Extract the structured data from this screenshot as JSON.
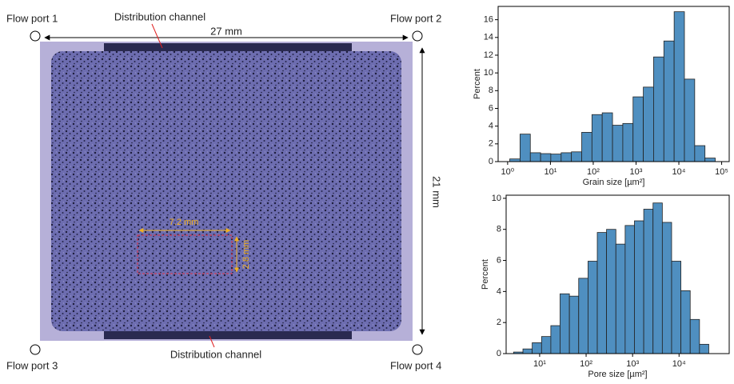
{
  "figure": {
    "port1": "Flow port 1",
    "port2": "Flow port 2",
    "port3": "Flow port 3",
    "port4": "Flow port 4",
    "channel_top": "Distribution channel",
    "channel_bottom": "Distribution channel",
    "width": "27 mm",
    "height": "21 mm",
    "roi_width": "7.2 mm",
    "roi_height": "2.8 mm"
  },
  "chart_data": [
    {
      "type": "histogram",
      "xlabel": "Grain size [µm²]",
      "ylabel": "Percent",
      "log_x": true,
      "color": "#4f8fc0",
      "bins": [
        1.12,
        1.95,
        3.39,
        5.89,
        10.2,
        17.8,
        30.9,
        53.7,
        93.3,
        162,
        282,
        490,
        851,
        1479,
        2570,
        4467,
        7762,
        13490,
        23440,
        40740,
        70790
      ],
      "values": [
        0.3,
        3.1,
        1.0,
        0.9,
        0.85,
        1.0,
        1.1,
        3.3,
        5.3,
        5.5,
        4.1,
        4.3,
        7.3,
        8.4,
        11.8,
        13.6,
        16.9,
        9.3,
        1.8,
        0.4
      ],
      "xlim": [
        0.6,
        150000
      ],
      "ylim": [
        0,
        17.5
      ],
      "xticks": [
        {
          "value": 1,
          "label": "10⁰"
        },
        {
          "value": 10,
          "label": "10¹"
        },
        {
          "value": 100,
          "label": "10²"
        },
        {
          "value": 1000,
          "label": "10³"
        },
        {
          "value": 10000,
          "label": "10⁴"
        },
        {
          "value": 100000,
          "label": "10⁵"
        }
      ],
      "yticks": [
        0,
        2,
        4,
        6,
        8,
        10,
        12,
        14,
        16
      ]
    },
    {
      "type": "histogram",
      "xlabel": "Pore size [µm²]",
      "ylabel": "Percent",
      "log_x": true,
      "color": "#4f8fc0",
      "bins": [
        2.75,
        4.37,
        6.92,
        11.0,
        17.4,
        27.5,
        43.7,
        69.2,
        110,
        174,
        275,
        437,
        692,
        1096,
        1738,
        2754,
        4365,
        6918,
        10965,
        17378,
        27542,
        43652
      ],
      "values": [
        0.1,
        0.3,
        0.7,
        1.1,
        1.8,
        3.85,
        3.7,
        4.85,
        5.95,
        7.8,
        8.0,
        7.05,
        8.25,
        8.55,
        9.3,
        9.7,
        8.45,
        5.95,
        4.05,
        2.2,
        0.6
      ],
      "xlim": [
        1.9,
        120000
      ],
      "ylim": [
        0,
        10.2
      ],
      "xticks": [
        {
          "value": 10,
          "label": "10¹"
        },
        {
          "value": 100,
          "label": "10²"
        },
        {
          "value": 1000,
          "label": "10³"
        },
        {
          "value": 10000,
          "label": "10⁴"
        }
      ],
      "yticks": [
        0,
        2,
        4,
        6,
        8,
        10
      ]
    }
  ]
}
